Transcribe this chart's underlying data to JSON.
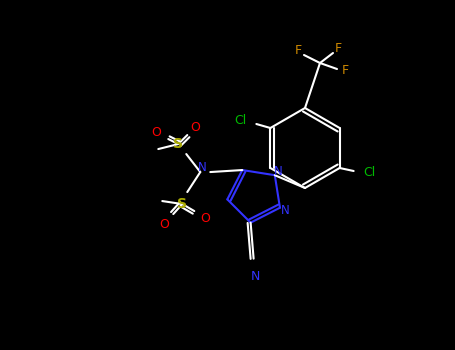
{
  "background_color": "#000000",
  "atom_colors": {
    "C": "#ffffff",
    "N": "#3333ff",
    "O": "#ff0000",
    "S": "#aaaa00",
    "F": "#cc8800",
    "Cl": "#00bb00"
  },
  "figsize": [
    4.55,
    3.5
  ],
  "dpi": 100
}
